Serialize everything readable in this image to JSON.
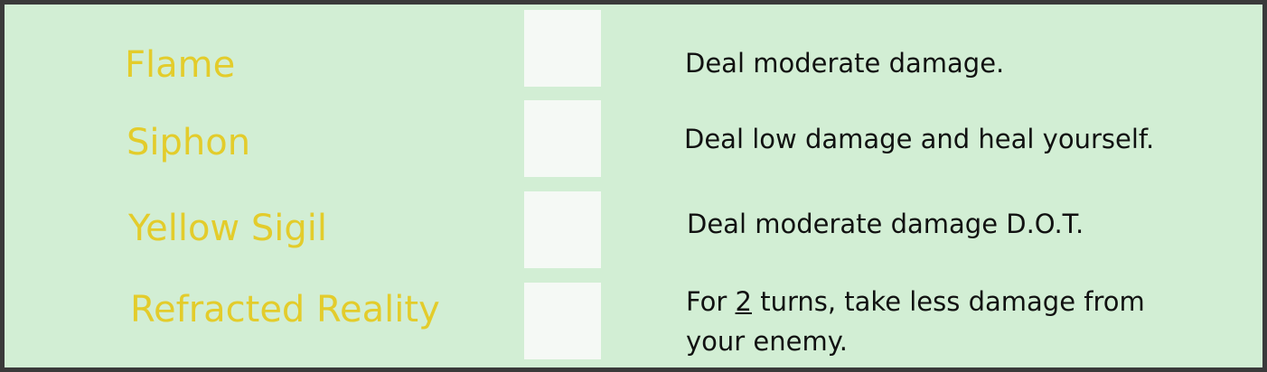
{
  "abilities": [
    {
      "name": "Flame",
      "description": "Deal moderate damage."
    },
    {
      "name": "Siphon",
      "description": "Deal low damage and heal yourself."
    },
    {
      "name": "Yellow Sigil",
      "description": "Deal moderate damage D.O.T."
    },
    {
      "name": "Refracted Reality",
      "description_prefix": "For ",
      "description_turns": "2",
      "description_line1_suffix": " turns, take less damage from",
      "description_line2": "your enemy."
    }
  ],
  "colors": {
    "background": "#d2eed4",
    "border": "#3a3a3a",
    "ability_name": "#e3cc2b",
    "slot": "#f5f9f5",
    "description": "#111111"
  }
}
